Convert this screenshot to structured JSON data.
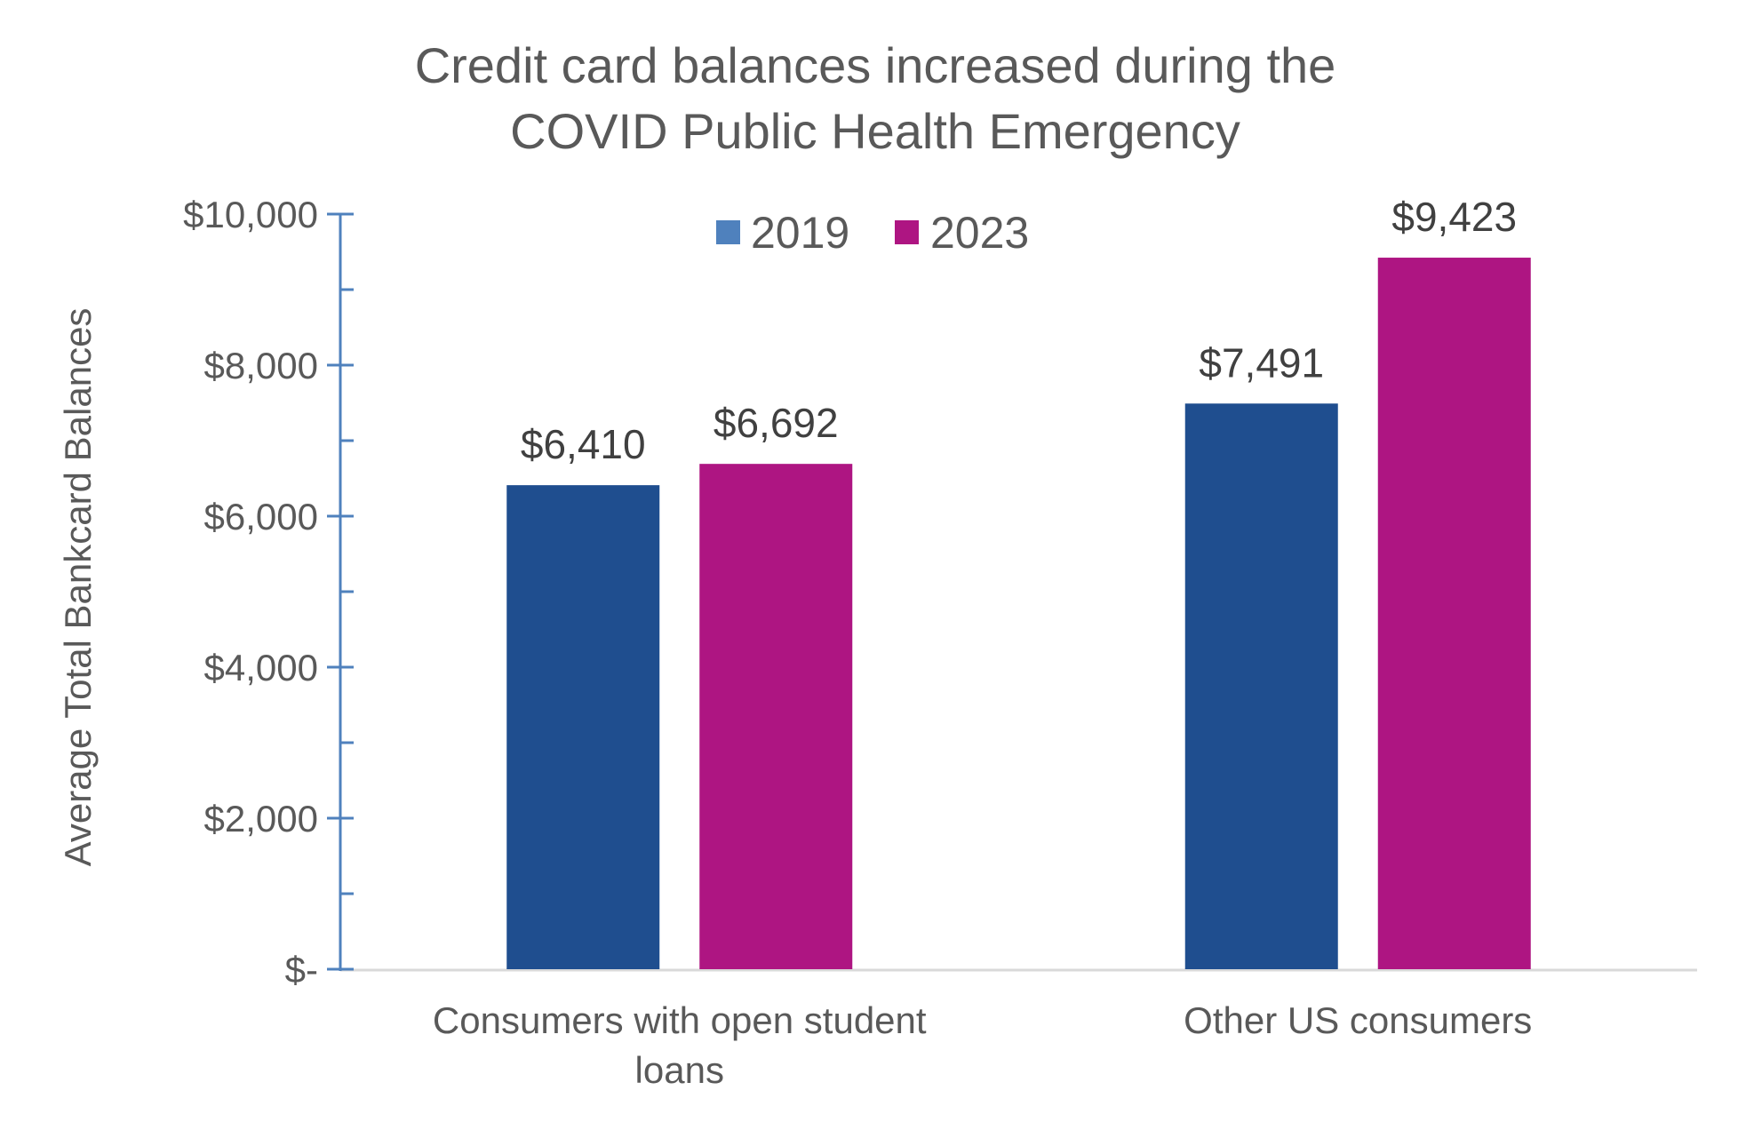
{
  "chart_data": {
    "type": "bar",
    "title": [
      "Credit card balances increased during the",
      "COVID Public Health Emergency"
    ],
    "xlabel": "",
    "ylabel": "Average Total Bankcard Balances",
    "ylim": [
      0,
      10000
    ],
    "y_major_step": 2000,
    "y_minor_step": 1000,
    "yticks": [
      {
        "value": 0,
        "label": "$-"
      },
      {
        "value": 2000,
        "label": "$2,000"
      },
      {
        "value": 4000,
        "label": "$4,000"
      },
      {
        "value": 6000,
        "label": "$6,000"
      },
      {
        "value": 8000,
        "label": "$8,000"
      },
      {
        "value": 10000,
        "label": "$10,000"
      }
    ],
    "categories": [
      {
        "label": [
          "Consumers with open student",
          "loans"
        ]
      },
      {
        "label": [
          "Other US consumers"
        ]
      }
    ],
    "series": [
      {
        "name": "2019",
        "color": "#1F4E8F",
        "legend_color": "#4F81BD",
        "values": [
          6410,
          7491
        ],
        "labels": [
          "$6,410",
          "$7,491"
        ]
      },
      {
        "name": "2023",
        "color": "#AE1582",
        "legend_color": "#AE1582",
        "values": [
          6692,
          9423
        ],
        "labels": [
          "$6,692",
          "$9,423"
        ]
      }
    ],
    "legend_position": "top-center",
    "grid": false,
    "axis_color": "#4F81BD",
    "baseline_color": "#D9D9D9"
  }
}
